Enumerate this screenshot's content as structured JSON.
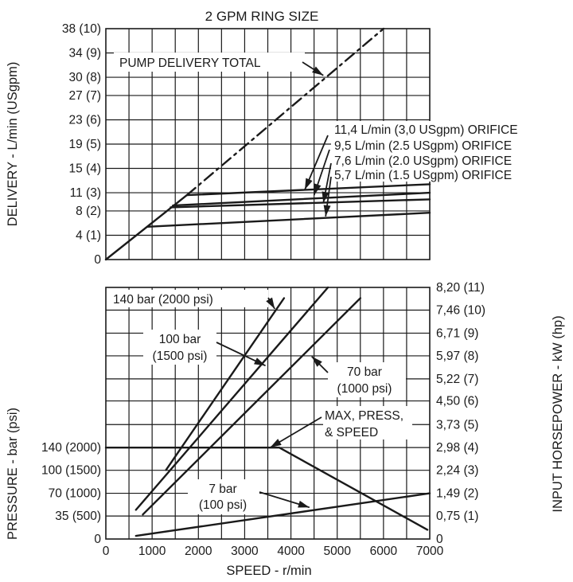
{
  "chart_data": [
    {
      "type": "line",
      "title": "2 GPM RING SIZE",
      "xlabel": "",
      "ylabel": "DELIVERY - L/min (USgpm)",
      "xlim": [
        0,
        7000
      ],
      "ylim": [
        0,
        38
      ],
      "grid": true,
      "y_tick_values": [
        0,
        4,
        8,
        11,
        15,
        19,
        23,
        27,
        30,
        34,
        38
      ],
      "y_tick_labels": [
        "0",
        "4 (1)",
        "8 (2)",
        "11 (3)",
        "15 (4)",
        "19 (5)",
        "23 (6)",
        "27 (7)",
        "30 (8)",
        "34 (9)",
        "38 (10)"
      ],
      "series": [
        {
          "name": "PUMP DELIVERY TOTAL",
          "style": "dash-dot",
          "x": [
            1750,
            6000
          ],
          "y": [
            10.6,
            38
          ]
        },
        {
          "name": "",
          "style": "solid",
          "x": [
            0,
            1750
          ],
          "y": [
            0,
            10.6
          ]
        },
        {
          "name": "11,4 L/min (3,0 USgpm) ORIFICE",
          "style": "solid",
          "x": [
            1750,
            7000
          ],
          "y": [
            10.6,
            12.4
          ]
        },
        {
          "name": "9,5 L/min (2.5 USgpm) ORIFICE",
          "style": "solid",
          "x": [
            1450,
            7000
          ],
          "y": [
            8.9,
            11.0
          ]
        },
        {
          "name": "7,6 L/min (2.0 USgpm) ORIFICE",
          "style": "solid",
          "x": [
            1400,
            7000
          ],
          "y": [
            8.6,
            9.9
          ]
        },
        {
          "name": "5,7 L/min (1.5 USgpm) ORIFICE",
          "style": "solid",
          "x": [
            900,
            7000
          ],
          "y": [
            5.4,
            7.7
          ]
        }
      ],
      "annotations": [
        {
          "text": "PUMP DELIVERY TOTAL",
          "arrow_to": [
            4700,
            30.3
          ]
        },
        {
          "text": "11,4 L/min (3,0 USgpm) ORIFICE",
          "arrow_to": [
            4300,
            11.5
          ]
        },
        {
          "text": "9,5 L/min (2.5 USgpm) ORIFICE",
          "arrow_to": [
            4500,
            10.6
          ]
        },
        {
          "text": "7,6 L/min (2.0 USgpm) ORIFICE",
          "arrow_to": [
            4700,
            9.3
          ]
        },
        {
          "text": "5,7 L/min (1.5 USgpm) ORIFICE",
          "arrow_to": [
            4750,
            7.1
          ]
        }
      ]
    },
    {
      "type": "line",
      "title": "",
      "xlabel": "SPEED - r/min",
      "ylabel": "PRESSURE - bar (psi)",
      "y2label": "INPUT HORSEPOWER - kW (hp)",
      "xlim": [
        0,
        7000
      ],
      "ylim": [
        0,
        8.2
      ],
      "y_unit": "kW",
      "grid": true,
      "x_tick_values": [
        0,
        1000,
        2000,
        3000,
        4000,
        5000,
        6000,
        7000
      ],
      "x_tick_labels": [
        "0",
        "1000",
        "2000",
        "3000",
        "4000",
        "5000",
        "6000",
        "7000"
      ],
      "left_tick_values": [
        0,
        0.75,
        1.49,
        2.24,
        2.98
      ],
      "left_tick_labels": [
        "0",
        "35 (500)",
        "70 (1000)",
        "100 (1500)",
        "140 (2000)"
      ],
      "right_tick_values": [
        0,
        0.75,
        1.49,
        2.24,
        2.98,
        3.73,
        4.5,
        5.22,
        5.97,
        6.71,
        7.46,
        8.2
      ],
      "right_tick_labels": [
        "0",
        "0,75 (1)",
        "1,49 (2)",
        "2,24 (3)",
        "2,98 (4)",
        "3,73 (5)",
        "4,50 (6)",
        "5,22 (7)",
        "5,97 (8)",
        "6,71 (9)",
        "7,46 (10)",
        "8,20 (11)"
      ],
      "series": [
        {
          "name": "140 bar (2000 psi)",
          "x": [
            1300,
            3850
          ],
          "y": [
            2.25,
            7.85
          ]
        },
        {
          "name": "100 bar (1500 psi)",
          "x": [
            650,
            4800
          ],
          "y": [
            0.95,
            8.2
          ]
        },
        {
          "name": "70 bar (1000 psi)",
          "x": [
            800,
            5500
          ],
          "y": [
            0.8,
            7.85
          ]
        },
        {
          "name": "7 bar (100 psi)",
          "x": [
            650,
            7000
          ],
          "y": [
            0.1,
            1.49
          ]
        },
        {
          "name": "MAX, PRESS, & SPEED",
          "x": [
            0,
            3750,
            6950
          ],
          "y": [
            2.98,
            2.98,
            0.3
          ]
        }
      ],
      "annotations": [
        {
          "text": "140 bar (2000 psi)",
          "arrow_to": [
            3650,
            7.5
          ]
        },
        {
          "text": "100 bar (1500 psi)",
          "arrow_to": [
            3450,
            5.65
          ]
        },
        {
          "text": "70 bar (1000 psi)",
          "arrow_to": [
            4450,
            5.95
          ]
        },
        {
          "text": "MAX, PRESS, & SPEED",
          "arrow_to": [
            3550,
            2.98
          ]
        },
        {
          "text": "7 bar (100 psi)",
          "arrow_to": [
            4400,
            1.03
          ]
        }
      ]
    }
  ],
  "labels": {
    "ann_pump_total": "PUMP DELIVERY TOTAL",
    "ann_o1": "11,4 L/min (3,0 USgpm) ORIFICE",
    "ann_o2": "9,5 L/min (2.5 USgpm) ORIFICE",
    "ann_o3": "7,6 L/min (2.0 USgpm) ORIFICE",
    "ann_o4": "5,7 L/min (1.5 USgpm) ORIFICE",
    "ann_140_line1": "140 bar (2000 psi)",
    "ann_100_line1": "100 bar",
    "ann_100_line2": "(1500 psi)",
    "ann_70_line1": "70 bar",
    "ann_70_line2": "(1000 psi)",
    "ann_max_line1": "MAX, PRESS,",
    "ann_max_line2": "& SPEED",
    "ann_7_line1": "7 bar",
    "ann_7_line2": "(100 psi)"
  }
}
